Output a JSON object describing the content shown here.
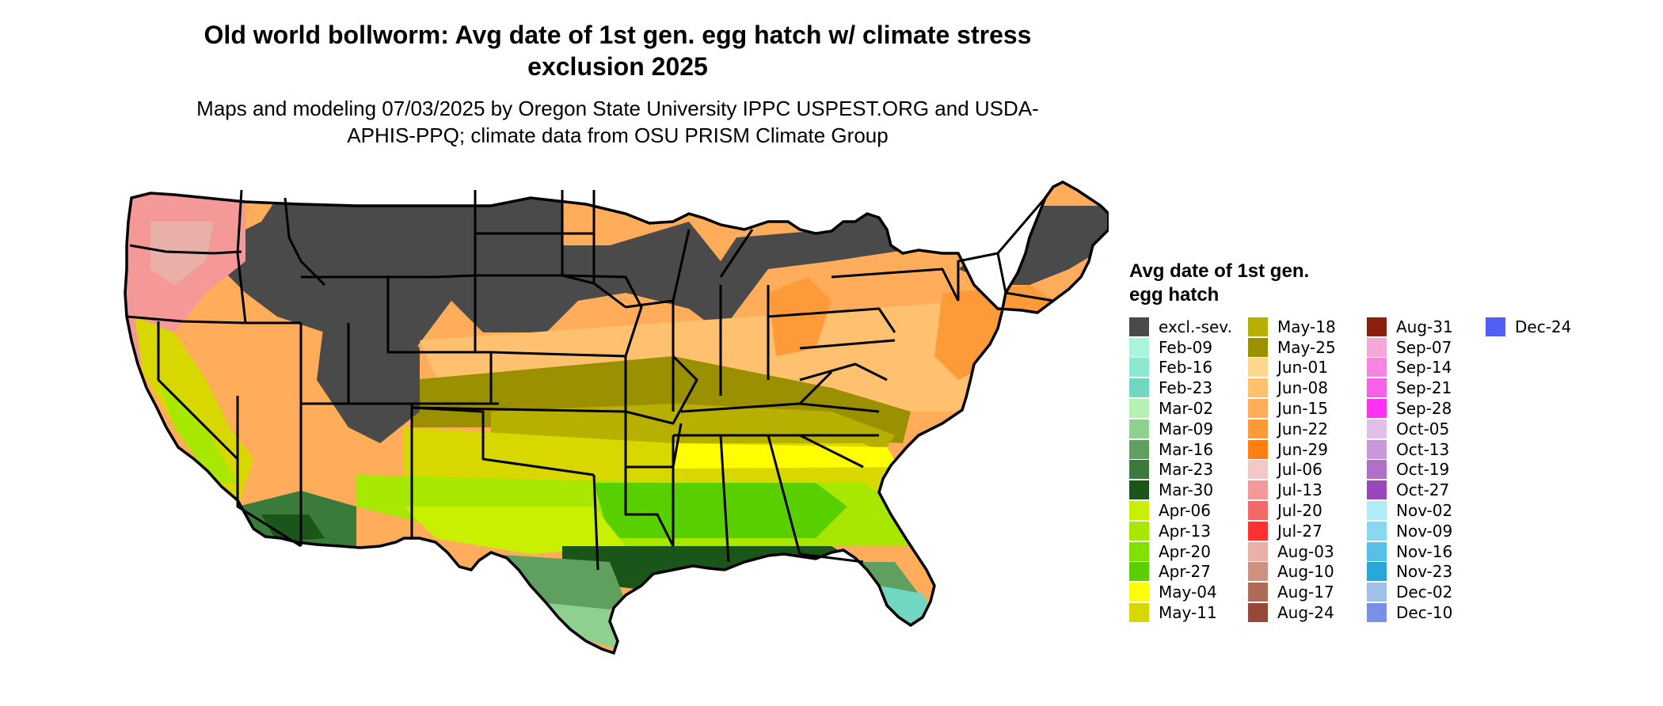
{
  "title": "Old world bollworm: Avg date of 1st gen. egg hatch w/ climate stress exclusion 2025",
  "subtitle": "Maps and modeling 07/03/2025 by Oregon State University IPPC USPEST.ORG and USDA-APHIS-PPQ; climate data from OSU PRISM Climate Group",
  "legend": {
    "title": "Avg date of 1st gen. egg hatch",
    "columns": [
      [
        {
          "label": "excl.-sev.",
          "color": "#4a4a4a"
        },
        {
          "label": "Feb-09",
          "color": "#a8f5dc"
        },
        {
          "label": "Feb-16",
          "color": "#8de8d0"
        },
        {
          "label": "Feb-23",
          "color": "#70d7c2"
        },
        {
          "label": "Mar-02",
          "color": "#b5f0b5"
        },
        {
          "label": "Mar-09",
          "color": "#8fd08f"
        },
        {
          "label": "Mar-16",
          "color": "#5fa05f"
        },
        {
          "label": "Mar-23",
          "color": "#3a7a3a"
        },
        {
          "label": "Mar-30",
          "color": "#1a551a"
        },
        {
          "label": "Apr-06",
          "color": "#c8f000"
        },
        {
          "label": "Apr-13",
          "color": "#a8e800"
        },
        {
          "label": "Apr-20",
          "color": "#80e000"
        },
        {
          "label": "Apr-27",
          "color": "#58d000"
        },
        {
          "label": "May-04",
          "color": "#ffff00"
        },
        {
          "label": "May-11",
          "color": "#d8d800"
        }
      ],
      [
        {
          "label": "May-18",
          "color": "#b8b000"
        },
        {
          "label": "May-25",
          "color": "#9a9000"
        },
        {
          "label": "Jun-01",
          "color": "#ffd890"
        },
        {
          "label": "Jun-08",
          "color": "#ffc070"
        },
        {
          "label": "Jun-15",
          "color": "#ffad5a"
        },
        {
          "label": "Jun-22",
          "color": "#ff9a38"
        },
        {
          "label": "Jun-29",
          "color": "#ff8010"
        },
        {
          "label": "Jul-06",
          "color": "#f5c8c8"
        },
        {
          "label": "Jul-13",
          "color": "#f59898"
        },
        {
          "label": "Jul-20",
          "color": "#f56868"
        },
        {
          "label": "Jul-27",
          "color": "#ff3030"
        },
        {
          "label": "Aug-03",
          "color": "#e8b0a8"
        },
        {
          "label": "Aug-10",
          "color": "#d09080"
        },
        {
          "label": "Aug-17",
          "color": "#b06a58"
        },
        {
          "label": "Aug-24",
          "color": "#984838"
        }
      ],
      [
        {
          "label": "Aug-31",
          "color": "#8a2010"
        },
        {
          "label": "Sep-07",
          "color": "#f5a8d8"
        },
        {
          "label": "Sep-14",
          "color": "#f585e0"
        },
        {
          "label": "Sep-21",
          "color": "#f860e8"
        },
        {
          "label": "Sep-28",
          "color": "#ff30f0"
        },
        {
          "label": "Oct-05",
          "color": "#e0c0e8"
        },
        {
          "label": "Oct-13",
          "color": "#c898d8"
        },
        {
          "label": "Oct-19",
          "color": "#b070c8"
        },
        {
          "label": "Oct-27",
          "color": "#9848b8"
        },
        {
          "label": "Nov-02",
          "color": "#b0ecf8"
        },
        {
          "label": "Nov-09",
          "color": "#88d8f0"
        },
        {
          "label": "Nov-16",
          "color": "#58c0e8"
        },
        {
          "label": "Nov-23",
          "color": "#28a8d8"
        },
        {
          "label": "Dec-02",
          "color": "#a0c0e8"
        },
        {
          "label": "Dec-10",
          "color": "#7890e8"
        }
      ],
      [
        {
          "label": "Dec-24",
          "color": "#5060f0"
        }
      ]
    ]
  }
}
